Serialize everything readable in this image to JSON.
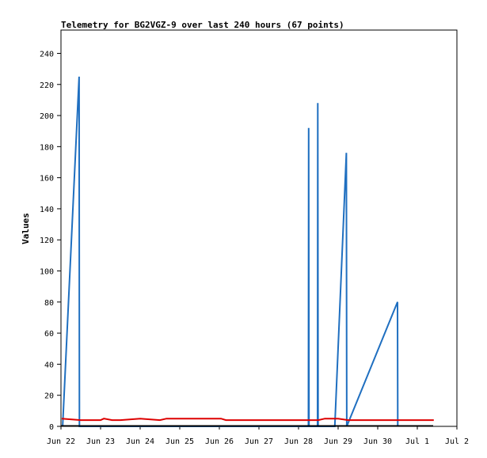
{
  "chart_data": {
    "type": "line",
    "title": "Telemetry for BG2VGZ-9 over last 240 hours (67 points)",
    "ylabel": "Values",
    "xlabel": "",
    "ylim": [
      0,
      255
    ],
    "xlim": [
      "Jun 22 00:00",
      "Jul 2 00:00"
    ],
    "x_ticks": [
      "Jun 22",
      "Jun 23",
      "Jun 24",
      "Jun 25",
      "Jun 26",
      "Jun 27",
      "Jun 28",
      "Jun 29",
      "Jun 30",
      "Jul 1",
      "Jul 2"
    ],
    "y_ticks": [
      0,
      20,
      40,
      60,
      80,
      100,
      120,
      140,
      160,
      180,
      200,
      220,
      240
    ],
    "grid": false,
    "series": [
      {
        "color": "#1f6fc0",
        "points": [
          [
            "Jun 22 01:00",
            0
          ],
          [
            "Jun 22 11:00",
            225
          ],
          [
            "Jun 22 11:10",
            0
          ],
          [
            "Jun 28 06:00",
            0
          ],
          [
            "Jun 28 06:10",
            192
          ],
          [
            "Jun 28 06:20",
            0
          ],
          [
            "Jun 28 11:30",
            0
          ],
          [
            "Jun 28 11:40",
            208
          ],
          [
            "Jun 28 11:50",
            0
          ],
          [
            "Jun 28 22:00",
            0
          ],
          [
            "Jun 29 05:00",
            176
          ],
          [
            "Jun 29 05:15",
            0
          ],
          [
            "Jun 30 12:00",
            80
          ],
          [
            "Jun 30 12:10",
            0
          ]
        ]
      },
      {
        "color": "#dd0000",
        "points": [
          [
            "Jun 22 00:30",
            5
          ],
          [
            "Jun 22 12:00",
            4
          ],
          [
            "Jun 23 00:00",
            4
          ],
          [
            "Jun 23 02:00",
            5
          ],
          [
            "Jun 23 07:00",
            4
          ],
          [
            "Jun 23 12:00",
            4
          ],
          [
            "Jun 24 00:00",
            5
          ],
          [
            "Jun 24 12:00",
            4
          ],
          [
            "Jun 24 16:00",
            5
          ],
          [
            "Jun 25 12:00",
            5
          ],
          [
            "Jun 26 01:00",
            5
          ],
          [
            "Jun 26 04:00",
            4
          ],
          [
            "Jun 27 12:00",
            4
          ],
          [
            "Jun 28 12:00",
            4
          ],
          [
            "Jun 28 16:00",
            5
          ],
          [
            "Jun 29 00:00",
            5
          ],
          [
            "Jun 29 06:00",
            4
          ],
          [
            "Jun 30 12:00",
            4
          ],
          [
            "Jul 1 10:00",
            4
          ]
        ]
      }
    ]
  }
}
